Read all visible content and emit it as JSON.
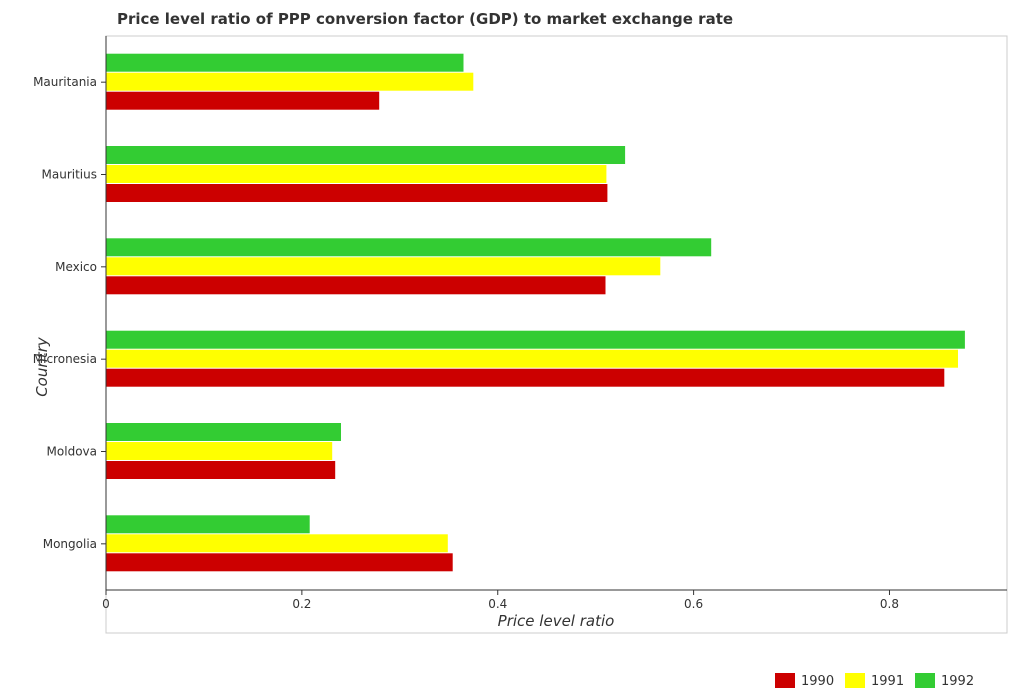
{
  "chart_data": {
    "type": "bar",
    "orientation": "horizontal",
    "title": "Price level ratio of PPP conversion factor (GDP) to market exchange rate",
    "xlabel": "Price level ratio",
    "ylabel": "Country",
    "xlim": [
      0,
      0.92
    ],
    "xticks": [
      0.0,
      0.2,
      0.4,
      0.6,
      0.8
    ],
    "xtick_labels": [
      "0",
      "0.2",
      "0.4",
      "0.6",
      "0.8"
    ],
    "grid": false,
    "legend_position": "bottom-right",
    "categories": [
      "Mauritania",
      "Mauritius",
      "Mexico",
      "Micronesia",
      "Moldova",
      "Mongolia"
    ],
    "series": [
      {
        "name": "1990",
        "color": "#cc0000",
        "values": [
          0.279,
          0.512,
          0.51,
          0.856,
          0.234,
          0.354
        ]
      },
      {
        "name": "1991",
        "color": "#ffff00",
        "values": [
          0.375,
          0.511,
          0.566,
          0.87,
          0.231,
          0.349
        ]
      },
      {
        "name": "1992",
        "color": "#33cc33",
        "values": [
          0.365,
          0.53,
          0.618,
          0.877,
          0.24,
          0.208
        ]
      }
    ]
  }
}
